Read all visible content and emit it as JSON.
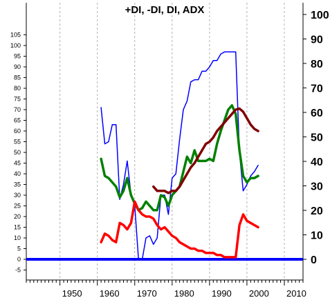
{
  "chart_data": {
    "type": "line",
    "title": "+DI, -DI, DI, ADX",
    "xlim": [
      1941,
      2015
    ],
    "left_axis": {
      "ylim": [
        -10,
        105
      ],
      "ticks": [
        -5,
        0,
        5,
        10,
        15,
        20,
        25,
        30,
        35,
        40,
        45,
        50,
        55,
        60,
        65,
        70,
        75,
        80,
        85,
        90,
        95,
        100,
        105
      ],
      "tick_labels": [
        "-5",
        "0",
        "5",
        "10",
        "15",
        "20",
        "25",
        "30",
        "35",
        "40",
        "45",
        "50",
        "55",
        "60",
        "65",
        "70",
        "75",
        "80",
        "85",
        "90",
        "95",
        "100",
        "105"
      ]
    },
    "right_axis": {
      "ticks": [
        0,
        10,
        20,
        30,
        40,
        50,
        60,
        70,
        80,
        90,
        100
      ],
      "tick_labels": [
        "0",
        "10",
        "20",
        "30",
        "40",
        "50",
        "60",
        "70",
        "80",
        "90",
        "100"
      ]
    },
    "x_ticks": [
      1950,
      1960,
      1970,
      1980,
      1990,
      2000,
      2010
    ],
    "x_tick_labels": [
      "1950",
      "1960",
      "1970",
      "1980",
      "1990",
      "2000",
      "2010"
    ],
    "grid": "vertical dashed",
    "colors": {
      "di_line": "#0000ff",
      "plus_di": "#008000",
      "minus_di": "#ff0000",
      "adx": "#800000",
      "zero_line": "#0000ff"
    },
    "series": [
      {
        "key": "di_line",
        "x": [
          1961,
          1962,
          1963,
          1964,
          1965,
          1966,
          1967,
          1968,
          1969,
          1970,
          1971,
          1972,
          1973,
          1974,
          1975,
          1976,
          1977,
          1978,
          1979,
          1980,
          1981,
          1982,
          1983,
          1984,
          1985,
          1986,
          1987,
          1988,
          1989,
          1990,
          1991,
          1992,
          1993,
          1994,
          1995,
          1996,
          1997,
          1998,
          1999,
          2000,
          2001,
          2002,
          2003
        ],
        "values": [
          71,
          54,
          55,
          63,
          63,
          28,
          35,
          46,
          30,
          25,
          0,
          0,
          10,
          11,
          7,
          10,
          30,
          30,
          21,
          38,
          40,
          56,
          70,
          74,
          83,
          84,
          84,
          88,
          88,
          90,
          93,
          93,
          96,
          97,
          97,
          97,
          97,
          50,
          32,
          35,
          39,
          41,
          44
        ]
      },
      {
        "key": "plus_di",
        "x": [
          1961,
          1962,
          1963,
          1964,
          1965,
          1966,
          1967,
          1968,
          1969,
          1970,
          1971,
          1972,
          1973,
          1974,
          1975,
          1976,
          1977,
          1978,
          1979,
          1980,
          1981,
          1982,
          1983,
          1984,
          1985,
          1986,
          1987,
          1988,
          1989,
          1990,
          1991,
          1992,
          1993,
          1994,
          1995,
          1996,
          1997,
          1998,
          1999,
          2000,
          2001,
          2002,
          2003
        ],
        "values": [
          47,
          39,
          38,
          36,
          34,
          29,
          32,
          38,
          30,
          26,
          23,
          24,
          27,
          25,
          23,
          23,
          30,
          29,
          25,
          30,
          32,
          34,
          41,
          48,
          45,
          51,
          46,
          46,
          46,
          47,
          46,
          54,
          60,
          65,
          70,
          72,
          68,
          51,
          39,
          36,
          38,
          38,
          39
        ]
      },
      {
        "key": "minus_di",
        "x": [
          1961,
          1962,
          1963,
          1964,
          1965,
          1966,
          1967,
          1968,
          1969,
          1970,
          1971,
          1972,
          1973,
          1974,
          1975,
          1976,
          1977,
          1978,
          1979,
          1980,
          1981,
          1982,
          1983,
          1984,
          1985,
          1986,
          1987,
          1988,
          1989,
          1990,
          1991,
          1992,
          1993,
          1994,
          1995,
          1996,
          1997,
          1998,
          1999,
          2000,
          2001,
          2002,
          2003
        ],
        "values": [
          8,
          12,
          11,
          9,
          8,
          17,
          16,
          14,
          17,
          27,
          23,
          21,
          20,
          20,
          19,
          16,
          14,
          15,
          13,
          11,
          10,
          8,
          7,
          6,
          5,
          5,
          4,
          4,
          3,
          3,
          3,
          2,
          2,
          1,
          1,
          1,
          1,
          16,
          21,
          18,
          17,
          16,
          15
        ]
      },
      {
        "key": "adx",
        "x": [
          1975,
          1976,
          1977,
          1978,
          1979,
          1980,
          1981,
          1982,
          1983,
          1984,
          1985,
          1986,
          1987,
          1988,
          1989,
          1990,
          1991,
          1992,
          1993,
          1994,
          1995,
          1996,
          1997,
          1998,
          1999,
          2000,
          2001,
          2002,
          2003
        ],
        "values": [
          34,
          32,
          32,
          32,
          31,
          32,
          32,
          34,
          37,
          40,
          43,
          45,
          48,
          51,
          54,
          55,
          57,
          60,
          62,
          64,
          66,
          68,
          70,
          70.5,
          69,
          66,
          63,
          61,
          60
        ]
      }
    ]
  }
}
